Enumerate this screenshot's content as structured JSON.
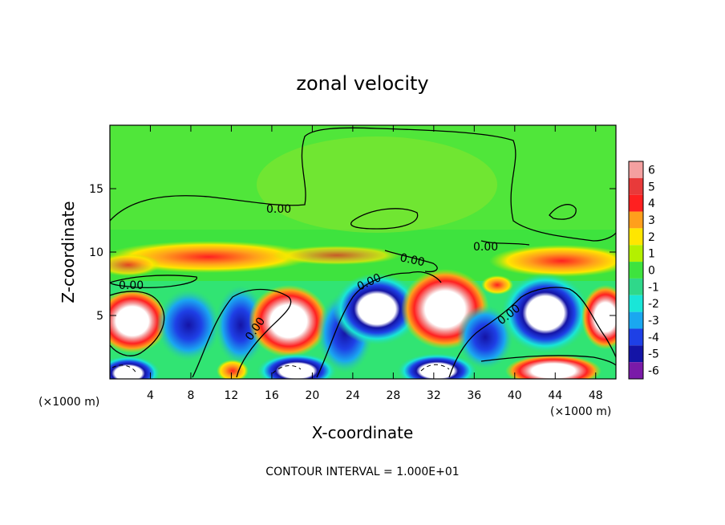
{
  "chart_data": {
    "type": "heatmap",
    "title": "zonal velocity",
    "xlabel": "X-coordinate",
    "ylabel": "Z-coordinate",
    "x_unit_left": "(×1000 m)",
    "x_unit_right": "(×1000 m)",
    "xlim": [
      0,
      50
    ],
    "ylim": [
      0,
      20
    ],
    "xticks": [
      4,
      8,
      12,
      16,
      20,
      24,
      28,
      32,
      36,
      40,
      44,
      48
    ],
    "yticks": [
      5,
      10,
      15
    ],
    "colorbar": {
      "levels": [
        6,
        5,
        4,
        3,
        2,
        1,
        0,
        -1,
        -2,
        -3,
        -4,
        -5,
        -6
      ],
      "colors": [
        "#f4a0a0",
        "#e83a3a",
        "#ff2020",
        "#ff9f1c",
        "#ffe600",
        "#b4f000",
        "#3ee33e",
        "#2fd88a",
        "#19e6d8",
        "#1aa7f0",
        "#1e40e6",
        "#1414a6",
        "#7a1aa8"
      ]
    },
    "contour_labels": [
      "0.00",
      "0.00",
      "0.00",
      "0.00",
      "0.00",
      "0.00",
      "0.00"
    ],
    "contour_interval": "CONTOUR INTERVAL = 1.000E+01"
  }
}
